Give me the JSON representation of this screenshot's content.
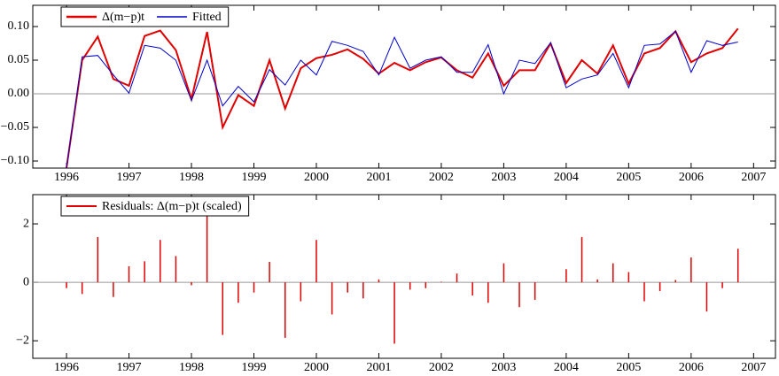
{
  "chart_data": [
    {
      "type": "line",
      "x": [
        1996,
        1996.25,
        1996.5,
        1996.75,
        1997,
        1997.25,
        1997.5,
        1997.75,
        1998,
        1998.25,
        1998.5,
        1998.75,
        1999,
        1999.25,
        1999.5,
        1999.75,
        2000,
        2000.25,
        2000.5,
        2000.75,
        2001,
        2001.25,
        2001.5,
        2001.75,
        2002,
        2002.25,
        2002.5,
        2002.75,
        2003,
        2003.25,
        2003.5,
        2003.75,
        2004,
        2004.25,
        2004.5,
        2004.75,
        2005,
        2005.25,
        2005.5,
        2005.75,
        2006,
        2006.25,
        2006.5,
        2006.75
      ],
      "series": [
        {
          "name": "Δ(m−p)t",
          "color": "#e00000",
          "width": 2,
          "values": [
            -0.11,
            0.05,
            0.085,
            0.022,
            0.012,
            0.086,
            0.094,
            0.065,
            -0.008,
            0.092,
            -0.05,
            -0.002,
            -0.018,
            0.05,
            -0.022,
            0.038,
            0.053,
            0.058,
            0.066,
            0.052,
            0.03,
            0.046,
            0.035,
            0.047,
            0.054,
            0.035,
            0.024,
            0.06,
            0.012,
            0.035,
            0.035,
            0.075,
            0.016,
            0.05,
            0.03,
            0.072,
            0.015,
            0.06,
            0.068,
            0.093,
            0.047,
            0.06,
            0.068,
            0.097
          ]
        },
        {
          "name": "Fitted",
          "color": "#0000cc",
          "width": 1,
          "values": [
            -0.11,
            0.055,
            0.057,
            0.028,
            0.001,
            0.072,
            0.068,
            0.05,
            -0.01,
            0.05,
            -0.018,
            0.011,
            -0.012,
            0.036,
            0.013,
            0.05,
            0.028,
            0.078,
            0.072,
            0.063,
            0.028,
            0.084,
            0.038,
            0.05,
            0.055,
            0.032,
            0.032,
            0.073,
            0.0,
            0.05,
            0.045,
            0.076,
            0.009,
            0.022,
            0.028,
            0.06,
            0.009,
            0.072,
            0.074,
            0.093,
            0.032,
            0.079,
            0.072,
            0.077
          ]
        }
      ],
      "xlim": [
        1995.46,
        2007.35
      ],
      "xticks": [
        1996,
        1997,
        1998,
        1999,
        2000,
        2001,
        2002,
        2003,
        2004,
        2005,
        2006,
        2007
      ],
      "ylim": [
        -0.1105,
        0.1316
      ],
      "yticks": [
        {
          "value": 0.1,
          "label": "0.10"
        },
        {
          "value": 0.05,
          "label": "0.05"
        },
        {
          "value": 0,
          "label": "0.00"
        },
        {
          "value": -0.05,
          "label": "−0.05"
        },
        {
          "value": -0.1,
          "label": "−0.10"
        }
      ],
      "legend": "upper left"
    },
    {
      "type": "spike",
      "x": [
        1996,
        1996.25,
        1996.5,
        1996.75,
        1997,
        1997.25,
        1997.5,
        1997.75,
        1998,
        1998.25,
        1998.5,
        1998.75,
        1999,
        1999.25,
        1999.5,
        1999.75,
        2000,
        2000.25,
        2000.5,
        2000.75,
        2001,
        2001.25,
        2001.5,
        2001.75,
        2002,
        2002.25,
        2002.5,
        2002.75,
        2003,
        2003.25,
        2003.5,
        2003.75,
        2004,
        2004.25,
        2004.5,
        2004.75,
        2005,
        2005.25,
        2005.5,
        2005.75,
        2006,
        2006.25,
        2006.5,
        2006.75
      ],
      "series": [
        {
          "name": "Residuals: Δ(m−p)t (scaled)",
          "color": "#e00000",
          "width": 1.5,
          "values": [
            -0.2,
            -0.4,
            1.55,
            -0.5,
            0.55,
            0.72,
            1.45,
            0.9,
            -0.1,
            2.35,
            -1.8,
            -0.7,
            -0.35,
            0.7,
            -1.9,
            -0.65,
            1.45,
            -1.1,
            -0.35,
            -0.55,
            0.1,
            -2.1,
            -0.25,
            -0.2,
            0.02,
            0.3,
            -0.45,
            -0.7,
            0.65,
            -0.85,
            -0.6,
            0.0,
            0.45,
            1.55,
            0.1,
            0.65,
            0.35,
            -0.65,
            -0.3,
            0.08,
            0.85,
            -1.0,
            -0.2,
            1.15
          ]
        }
      ],
      "xlim": [
        1995.46,
        2007.35
      ],
      "xticks": [
        1996,
        1997,
        1998,
        1999,
        2000,
        2001,
        2002,
        2003,
        2004,
        2005,
        2006,
        2007
      ],
      "ylim": [
        -2.6,
        3.0
      ],
      "yticks": [
        2,
        0,
        {
          "value": -2,
          "label": "−2"
        }
      ],
      "legend": "upper left"
    }
  ]
}
